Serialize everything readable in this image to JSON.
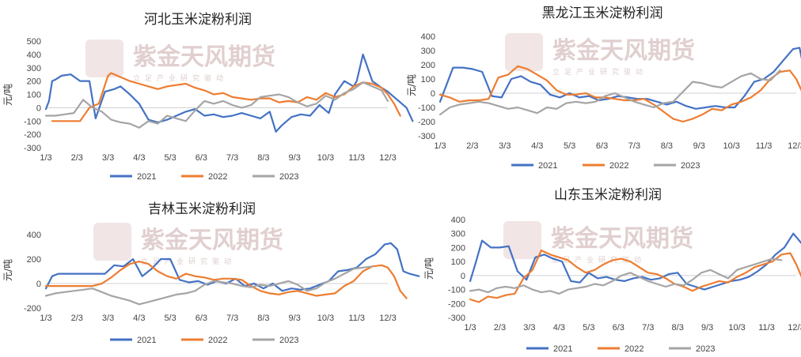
{
  "watermark": {
    "brand": "紫金天风期货",
    "slogan": "立足产业研究驱动"
  },
  "colors": {
    "2021": "#4472c4",
    "2022": "#ed7d31",
    "2023": "#a5a5a5"
  },
  "chart_data": [
    {
      "type": "line",
      "title": "河北玉米淀粉利润",
      "ylabel": "元/吨",
      "ylim": [
        -300,
        500
      ],
      "yticks": [
        -300,
        -200,
        -100,
        0,
        100,
        200,
        300,
        400,
        500
      ],
      "xticks": [
        "1/3",
        "2/3",
        "3/3",
        "4/3",
        "5/3",
        "6/3",
        "7/3",
        "8/3",
        "9/3",
        "10/3",
        "11/3",
        "12/3"
      ],
      "legend": "bottom",
      "series": [
        {
          "name": "2021",
          "x": [
            0,
            0.1,
            0.2,
            0.3,
            0.5,
            0.8,
            1.1,
            1.4,
            1.6,
            1.9,
            2.2,
            2.4,
            2.7,
            3.0,
            3.3,
            3.6,
            3.9,
            4.2,
            4.5,
            4.8,
            5.1,
            5.4,
            5.7,
            6.0,
            6.3,
            6.6,
            6.9,
            7.2,
            7.4,
            7.6,
            7.9,
            8.2,
            8.5,
            8.8,
            9.1,
            9.3,
            9.6,
            9.9,
            10.0,
            10.2,
            10.5,
            10.8,
            11.0,
            11.2,
            11.4,
            11.6,
            11.8
          ],
          "y": [
            -10,
            50,
            200,
            210,
            240,
            250,
            200,
            200,
            -80,
            120,
            140,
            160,
            100,
            30,
            -90,
            -110,
            -90,
            -60,
            -30,
            -10,
            -60,
            -50,
            -70,
            -60,
            -40,
            -60,
            -80,
            -30,
            -180,
            -130,
            -70,
            -50,
            -60,
            20,
            -40,
            100,
            200,
            160,
            200,
            400,
            200,
            150,
            120,
            80,
            40,
            0,
            -100
          ]
        },
        {
          "name": "2022",
          "x": [
            0.2,
            0.5,
            0.8,
            1.1,
            1.4,
            1.7,
            2.0,
            2.1,
            2.4,
            2.7,
            3.0,
            3.3,
            3.6,
            3.9,
            4.2,
            4.5,
            4.8,
            5.1,
            5.4,
            5.7,
            6.0,
            6.3,
            6.6,
            6.9,
            7.2,
            7.5,
            7.8,
            8.1,
            8.4,
            8.7,
            9.0,
            9.3,
            9.6,
            9.9,
            10.2,
            10.5,
            10.8,
            11.0,
            11.2,
            11.4
          ],
          "y": [
            -100,
            -100,
            -100,
            -100,
            0,
            30,
            240,
            260,
            230,
            200,
            180,
            160,
            140,
            160,
            170,
            180,
            150,
            130,
            100,
            110,
            80,
            70,
            60,
            70,
            70,
            40,
            50,
            40,
            80,
            60,
            110,
            80,
            100,
            160,
            190,
            180,
            150,
            100,
            30,
            -60
          ]
        },
        {
          "name": "2023",
          "x": [
            0,
            0.3,
            0.6,
            0.9,
            1.2,
            1.5,
            1.8,
            2.1,
            2.4,
            2.7,
            3.0,
            3.3,
            3.6,
            3.9,
            4.2,
            4.5,
            4.8,
            5.1,
            5.4,
            5.7,
            6.0,
            6.3,
            6.6,
            6.9,
            7.2,
            7.5,
            7.8,
            8.1,
            8.4,
            8.7,
            9.0,
            9.3,
            9.6,
            9.9,
            10.2,
            10.5,
            10.8,
            11.0
          ],
          "y": [
            -60,
            -60,
            -50,
            -40,
            60,
            0,
            -30,
            -90,
            -110,
            -120,
            -150,
            -100,
            -120,
            -60,
            -80,
            -100,
            -20,
            50,
            30,
            50,
            20,
            0,
            20,
            80,
            90,
            100,
            80,
            40,
            10,
            30,
            90,
            60,
            110,
            140,
            190,
            160,
            130,
            50
          ]
        }
      ]
    },
    {
      "type": "line",
      "title": "黑龙江玉米淀粉利润",
      "ylabel": "元/吨",
      "ylim": [
        -300,
        400
      ],
      "yticks": [
        -300,
        -200,
        -100,
        0,
        100,
        200,
        300,
        400
      ],
      "xticks": [
        "1/3",
        "2/3",
        "3/3",
        "4/3",
        "5/3",
        "6/3",
        "7/3",
        "8/3",
        "9/3",
        "10/3",
        "11/3",
        "12/3"
      ],
      "legend": "bottom",
      "series": [
        {
          "name": "2021",
          "x": [
            0,
            0.2,
            0.4,
            0.7,
            1.0,
            1.3,
            1.6,
            1.9,
            2.2,
            2.5,
            2.8,
            3.1,
            3.4,
            3.7,
            4.0,
            4.3,
            4.6,
            4.9,
            5.2,
            5.5,
            5.8,
            6.1,
            6.4,
            6.7,
            7.0,
            7.3,
            7.6,
            7.9,
            8.2,
            8.5,
            8.8,
            9.1,
            9.4,
            9.7,
            10.0,
            10.3,
            10.6,
            10.9,
            11.1,
            11.3,
            11.5,
            11.7,
            12.0
          ],
          "y": [
            -60,
            60,
            180,
            180,
            170,
            150,
            -20,
            -30,
            100,
            120,
            80,
            60,
            -10,
            -30,
            0,
            -30,
            -20,
            -50,
            -40,
            -20,
            -30,
            -40,
            -40,
            -60,
            -80,
            -60,
            -90,
            -110,
            -100,
            -90,
            -100,
            -100,
            -20,
            80,
            100,
            150,
            230,
            310,
            320,
            100,
            70,
            30,
            10
          ]
        },
        {
          "name": "2022",
          "x": [
            0,
            0.3,
            0.6,
            0.9,
            1.2,
            1.5,
            1.8,
            2.1,
            2.4,
            2.7,
            3.0,
            3.3,
            3.6,
            3.9,
            4.2,
            4.5,
            4.8,
            5.1,
            5.4,
            5.7,
            6.0,
            6.3,
            6.6,
            6.9,
            7.2,
            7.5,
            7.8,
            8.1,
            8.4,
            8.7,
            9.0,
            9.3,
            9.6,
            9.9,
            10.2,
            10.5,
            10.8,
            11.0,
            11.2,
            11.4,
            11.6
          ],
          "y": [
            -10,
            -30,
            -60,
            -50,
            -50,
            -40,
            110,
            130,
            190,
            170,
            130,
            90,
            20,
            -10,
            -10,
            0,
            -30,
            -30,
            -40,
            -50,
            -50,
            -40,
            -80,
            -130,
            -180,
            -200,
            -180,
            -150,
            -110,
            -120,
            -80,
            -60,
            -30,
            20,
            100,
            150,
            160,
            100,
            0,
            -80,
            -150
          ]
        },
        {
          "name": "2023",
          "x": [
            0,
            0.3,
            0.6,
            0.9,
            1.2,
            1.5,
            1.8,
            2.1,
            2.4,
            2.7,
            3.0,
            3.3,
            3.6,
            3.9,
            4.2,
            4.5,
            4.8,
            5.1,
            5.4,
            5.7,
            6.0,
            6.3,
            6.6,
            6.9,
            7.2,
            7.5,
            7.8,
            8.1,
            8.4,
            8.7,
            9.0,
            9.3,
            9.6,
            9.9,
            10.2,
            10.5
          ],
          "y": [
            -150,
            -100,
            -80,
            -70,
            -60,
            -70,
            -90,
            -110,
            -100,
            -120,
            -140,
            -100,
            -110,
            -70,
            -60,
            -70,
            -60,
            -20,
            0,
            -30,
            -60,
            -80,
            -100,
            -70,
            -60,
            10,
            80,
            70,
            50,
            40,
            80,
            120,
            140,
            100,
            90,
            160
          ]
        }
      ]
    },
    {
      "type": "line",
      "title": "吉林玉米淀粉利润",
      "ylabel": "元/吨",
      "ylim": [
        -200,
        400
      ],
      "yticks": [
        -200,
        0,
        200,
        400
      ],
      "xticks": [
        "1/3",
        "2/3",
        "3/3",
        "4/3",
        "5/3",
        "6/3",
        "7/3",
        "8/3",
        "9/3",
        "10/3",
        "11/3",
        "12/3"
      ],
      "legend": "bottom",
      "series": [
        {
          "name": "2021",
          "x": [
            0,
            0.2,
            0.4,
            0.7,
            1.0,
            1.3,
            1.6,
            1.9,
            2.2,
            2.5,
            2.8,
            3.1,
            3.4,
            3.7,
            4.0,
            4.3,
            4.6,
            4.9,
            5.2,
            5.5,
            5.8,
            6.1,
            6.4,
            6.7,
            7.0,
            7.3,
            7.6,
            7.9,
            8.2,
            8.5,
            8.8,
            9.1,
            9.4,
            9.7,
            10.0,
            10.3,
            10.6,
            10.9,
            11.1,
            11.3,
            11.5,
            11.7,
            12.0
          ],
          "y": [
            -40,
            60,
            80,
            80,
            80,
            80,
            80,
            80,
            150,
            140,
            200,
            60,
            120,
            200,
            200,
            30,
            10,
            20,
            -10,
            20,
            0,
            40,
            -20,
            0,
            -40,
            0,
            -60,
            -40,
            -50,
            -40,
            -10,
            20,
            100,
            110,
            130,
            200,
            240,
            320,
            330,
            280,
            100,
            80,
            60
          ]
        },
        {
          "name": "2022",
          "x": [
            0,
            0.3,
            0.6,
            0.9,
            1.2,
            1.5,
            1.8,
            2.1,
            2.4,
            2.7,
            3.0,
            3.3,
            3.6,
            3.9,
            4.2,
            4.5,
            4.8,
            5.1,
            5.4,
            5.7,
            6.0,
            6.3,
            6.6,
            6.9,
            7.2,
            7.5,
            7.8,
            8.1,
            8.4,
            8.7,
            9.0,
            9.3,
            9.6,
            9.9,
            10.2,
            10.5,
            10.8,
            11.0,
            11.2,
            11.4,
            11.6
          ],
          "y": [
            -20,
            -20,
            -20,
            -20,
            -20,
            -20,
            0,
            50,
            110,
            160,
            180,
            160,
            100,
            60,
            40,
            80,
            60,
            50,
            30,
            40,
            40,
            30,
            -20,
            -60,
            -80,
            -90,
            -70,
            -60,
            -80,
            -100,
            -90,
            -80,
            -20,
            20,
            100,
            140,
            150,
            130,
            60,
            -60,
            -120
          ]
        },
        {
          "name": "2023",
          "x": [
            0,
            0.3,
            0.6,
            0.9,
            1.2,
            1.5,
            1.8,
            2.1,
            2.4,
            2.7,
            3.0,
            3.3,
            3.6,
            3.9,
            4.2,
            4.5,
            4.8,
            5.1,
            5.4,
            5.7,
            6.0,
            6.3,
            6.6,
            6.9,
            7.2,
            7.5,
            7.8,
            8.1,
            8.4,
            8.7,
            9.0,
            9.3,
            9.6,
            9.9,
            10.2,
            10.5
          ],
          "y": [
            -100,
            -80,
            -70,
            -60,
            -50,
            -40,
            -70,
            -100,
            -120,
            -140,
            -170,
            -150,
            -130,
            -110,
            -90,
            -80,
            -60,
            -10,
            20,
            10,
            0,
            -20,
            -30,
            -10,
            -20,
            0,
            20,
            -10,
            -60,
            -40,
            10,
            40,
            80,
            120,
            130,
            140
          ]
        }
      ]
    },
    {
      "type": "line",
      "title": "山东玉米淀粉利润",
      "ylabel": "元/吨",
      "ylim": [
        -300,
        400
      ],
      "yticks": [
        -300,
        -200,
        -100,
        0,
        100,
        200,
        300,
        400
      ],
      "xticks": [
        "1/3",
        "2/3",
        "3/3",
        "4/3",
        "5/3",
        "6/3",
        "7/3",
        "8/3",
        "9/3",
        "10/3",
        "11/3",
        "12/3"
      ],
      "legend": "bottom",
      "series": [
        {
          "name": "2021",
          "x": [
            0,
            0.2,
            0.4,
            0.7,
            1.0,
            1.3,
            1.6,
            1.9,
            2.2,
            2.5,
            2.8,
            3.1,
            3.4,
            3.7,
            4.0,
            4.3,
            4.6,
            4.9,
            5.2,
            5.5,
            5.8,
            6.1,
            6.4,
            6.7,
            7.0,
            7.3,
            7.6,
            7.9,
            8.2,
            8.5,
            8.8,
            9.1,
            9.4,
            9.7,
            10.0,
            10.3,
            10.6,
            10.9,
            11.1,
            11.3,
            11.5,
            11.7,
            12.0
          ],
          "y": [
            -40,
            100,
            250,
            200,
            200,
            210,
            30,
            -30,
            130,
            150,
            120,
            100,
            -40,
            -50,
            20,
            -20,
            -10,
            -30,
            -40,
            -20,
            -10,
            -30,
            -20,
            10,
            20,
            -60,
            -80,
            -100,
            -80,
            -60,
            -40,
            -30,
            -10,
            30,
            80,
            150,
            200,
            300,
            250,
            200,
            100,
            20,
            -100
          ]
        },
        {
          "name": "2022",
          "x": [
            0,
            0.3,
            0.6,
            0.9,
            1.2,
            1.5,
            1.8,
            2.1,
            2.4,
            2.7,
            3.0,
            3.3,
            3.6,
            3.9,
            4.2,
            4.5,
            4.8,
            5.1,
            5.4,
            5.7,
            6.0,
            6.3,
            6.6,
            6.9,
            7.2,
            7.5,
            7.8,
            8.1,
            8.4,
            8.7,
            9.0,
            9.3,
            9.6,
            9.9,
            10.2,
            10.5,
            10.8,
            11.0,
            11.2,
            11.4,
            11.6
          ],
          "y": [
            -170,
            -190,
            -150,
            -160,
            -140,
            -130,
            -20,
            40,
            180,
            150,
            130,
            110,
            60,
            20,
            40,
            80,
            110,
            120,
            100,
            60,
            20,
            10,
            -20,
            -60,
            -80,
            -110,
            -80,
            -60,
            -40,
            -50,
            -10,
            20,
            60,
            80,
            100,
            150,
            160,
            80,
            -20,
            -120,
            -160
          ]
        },
        {
          "name": "2023",
          "x": [
            0,
            0.3,
            0.6,
            0.9,
            1.2,
            1.5,
            1.8,
            2.1,
            2.4,
            2.7,
            3.0,
            3.3,
            3.6,
            3.9,
            4.2,
            4.5,
            4.8,
            5.1,
            5.4,
            5.7,
            6.0,
            6.3,
            6.6,
            6.9,
            7.2,
            7.5,
            7.8,
            8.1,
            8.4,
            8.7,
            9.0,
            9.3,
            9.6,
            9.9,
            10.2,
            10.5
          ],
          "y": [
            -110,
            -100,
            -120,
            -90,
            -80,
            -90,
            -70,
            -100,
            -120,
            -110,
            -130,
            -100,
            -90,
            -80,
            -60,
            -70,
            -40,
            0,
            20,
            -10,
            -40,
            -60,
            -80,
            -60,
            -70,
            -30,
            20,
            40,
            10,
            -20,
            40,
            60,
            80,
            100,
            120,
            110
          ]
        }
      ]
    }
  ]
}
